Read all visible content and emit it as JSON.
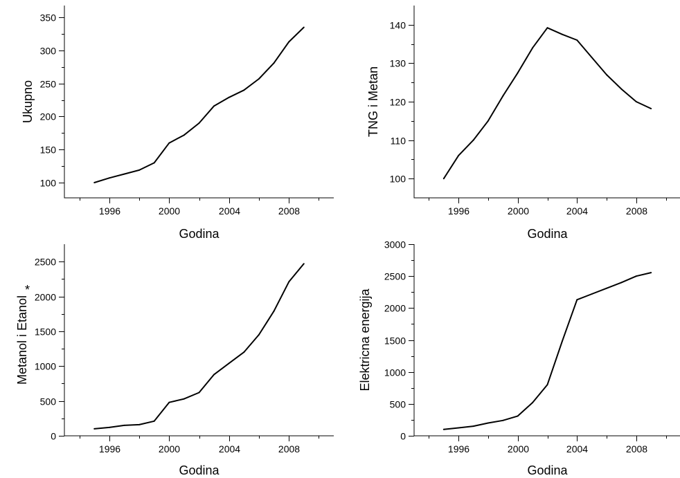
{
  "chart_data": [
    {
      "type": "line",
      "xlabel": "Godina",
      "ylabel": "Ukupno",
      "ylabel_suffix": "",
      "xlim": [
        1993,
        2011
      ],
      "ylim": [
        77,
        368
      ],
      "x_ticks_major": [
        1996,
        2000,
        2004,
        2008
      ],
      "x_ticks_minor": [
        1994,
        1998,
        2002,
        2006,
        2010
      ],
      "y_ticks_major": [
        100,
        150,
        200,
        250,
        300,
        350
      ],
      "y_ticks_minor": [
        125,
        175,
        225,
        275,
        325
      ],
      "x": [
        1995,
        1996,
        1997,
        1998,
        1999,
        2000,
        2001,
        2002,
        2003,
        2004,
        2005,
        2006,
        2007,
        2008,
        2009
      ],
      "values": [
        100,
        107,
        113,
        119,
        130,
        160,
        172,
        190,
        216,
        229,
        240,
        257,
        281,
        313,
        335
      ]
    },
    {
      "type": "line",
      "xlabel": "Godina",
      "ylabel": "TNG i Metan",
      "ylabel_suffix": "",
      "xlim": [
        1993,
        2011
      ],
      "ylim": [
        95,
        145
      ],
      "x_ticks_major": [
        1996,
        2000,
        2004,
        2008
      ],
      "x_ticks_minor": [
        1994,
        1998,
        2002,
        2006,
        2010
      ],
      "y_ticks_major": [
        100,
        110,
        120,
        130,
        140
      ],
      "y_ticks_minor": [
        105,
        115,
        125,
        135
      ],
      "x": [
        1995,
        1996,
        1997,
        1998,
        1999,
        2000,
        2001,
        2002,
        2003,
        2004,
        2005,
        2006,
        2007,
        2008,
        2009
      ],
      "values": [
        100,
        106,
        110,
        115,
        121.5,
        127.5,
        134,
        139.2,
        137.5,
        136,
        131.5,
        127,
        123.3,
        120,
        118.2
      ]
    },
    {
      "type": "line",
      "xlabel": "Godina",
      "ylabel": "Metanol i Etanol",
      "ylabel_suffix": "*",
      "xlim": [
        1993,
        2011
      ],
      "ylim": [
        0,
        2750
      ],
      "x_ticks_major": [
        1996,
        2000,
        2004,
        2008
      ],
      "x_ticks_minor": [
        1994,
        1998,
        2002,
        2006,
        2010
      ],
      "y_ticks_major": [
        0,
        500,
        1000,
        1500,
        2000,
        2500
      ],
      "y_ticks_minor": [
        250,
        750,
        1250,
        1750,
        2250
      ],
      "x": [
        1995,
        1996,
        1997,
        1998,
        1999,
        2000,
        2001,
        2002,
        2003,
        2004,
        2005,
        2006,
        2007,
        2008,
        2009
      ],
      "values": [
        100,
        120,
        150,
        160,
        210,
        480,
        530,
        620,
        880,
        1040,
        1200,
        1450,
        1790,
        2210,
        2470
      ]
    },
    {
      "type": "line",
      "xlabel": "Godina",
      "ylabel": "Elektricna energija",
      "ylabel_suffix": "",
      "xlim": [
        1993,
        2011
      ],
      "ylim": [
        0,
        3000
      ],
      "x_ticks_major": [
        1996,
        2000,
        2004,
        2008
      ],
      "x_ticks_minor": [
        1994,
        1998,
        2002,
        2006,
        2010
      ],
      "y_ticks_major": [
        0,
        500,
        1000,
        1500,
        2000,
        2500,
        3000
      ],
      "y_ticks_minor": [
        250,
        750,
        1250,
        1750,
        2250,
        2750
      ],
      "x": [
        1995,
        1996,
        1997,
        1998,
        1999,
        2000,
        2001,
        2002,
        2003,
        2004,
        2005,
        2006,
        2007,
        2008,
        2009
      ],
      "values": [
        100,
        125,
        150,
        200,
        240,
        310,
        520,
        800,
        1480,
        2130,
        2220,
        2310,
        2400,
        2500,
        2555
      ]
    }
  ]
}
